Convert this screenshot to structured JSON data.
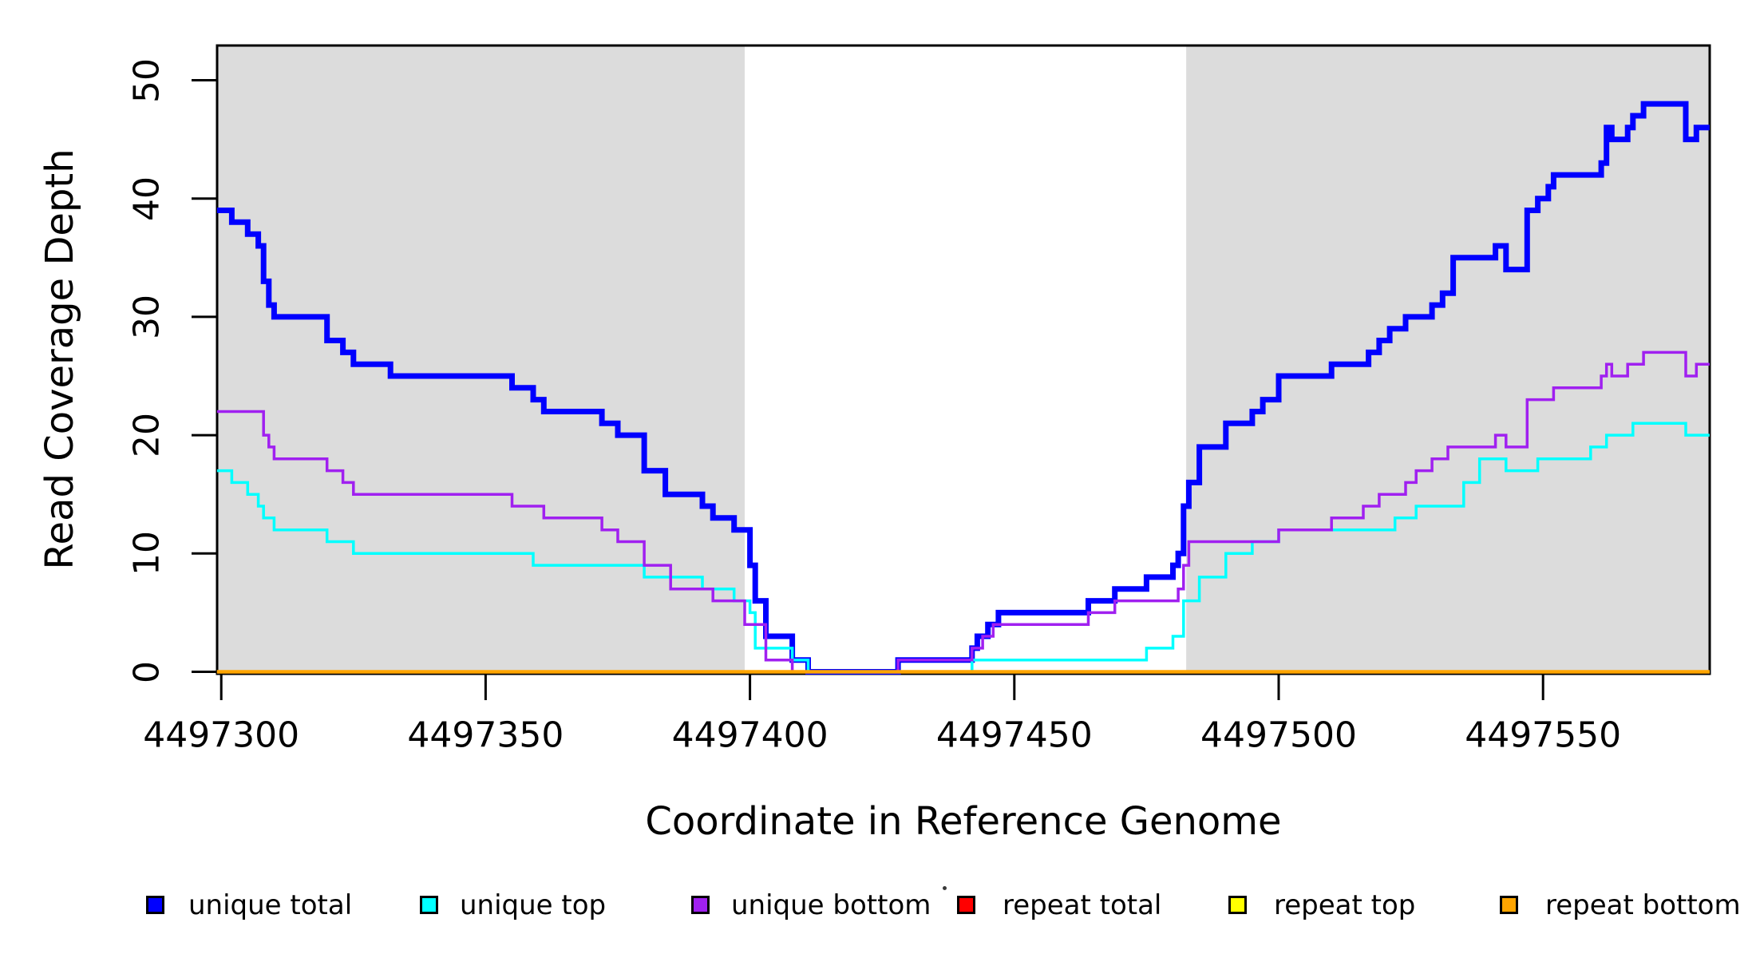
{
  "chart_data": {
    "type": "line",
    "style": "step",
    "title": "",
    "xlabel": "Coordinate in Reference Genome",
    "ylabel": "Read Coverage Depth",
    "xlim": [
      4497299.2,
      4497581.5
    ],
    "ylim": [
      0,
      53
    ],
    "x_ticks": [
      4497300,
      4497350,
      4497400,
      4497450,
      4497500,
      4497550
    ],
    "y_ticks": [
      0,
      10,
      20,
      30,
      40,
      50
    ],
    "grid": false,
    "legend_position": "bottom",
    "plot_background": "#ffffff",
    "shaded_regions": [
      {
        "from": 4497299.2,
        "to": 4497399,
        "color": "#dcdcdc"
      },
      {
        "from": 4497482.5,
        "to": 4497581.5,
        "color": "#dcdcdc"
      }
    ],
    "series": [
      {
        "name": "unique total",
        "color": "#0000ff",
        "line_width": 7,
        "points": [
          [
            4497299.2,
            39
          ],
          [
            4497302,
            38
          ],
          [
            4497305,
            37
          ],
          [
            4497307,
            36
          ],
          [
            4497308,
            33
          ],
          [
            4497309,
            31
          ],
          [
            4497310,
            30
          ],
          [
            4497320,
            28
          ],
          [
            4497323,
            27
          ],
          [
            4497325,
            26
          ],
          [
            4497332,
            25
          ],
          [
            4497355,
            24
          ],
          [
            4497359,
            23
          ],
          [
            4497361,
            22
          ],
          [
            4497372,
            21
          ],
          [
            4497375,
            20
          ],
          [
            4497380,
            17
          ],
          [
            4497384,
            15
          ],
          [
            4497391,
            14
          ],
          [
            4497393,
            13
          ],
          [
            4497397,
            12
          ],
          [
            4497400,
            9
          ],
          [
            4497401,
            6
          ],
          [
            4497403,
            3
          ],
          [
            4497408,
            1
          ],
          [
            4497411,
            0
          ],
          [
            4497428,
            1
          ],
          [
            4497442,
            2
          ],
          [
            4497443,
            3
          ],
          [
            4497445,
            4
          ],
          [
            4497447,
            5
          ],
          [
            4497464,
            6
          ],
          [
            4497469,
            7
          ],
          [
            4497475,
            8
          ],
          [
            4497480,
            9
          ],
          [
            4497481,
            10
          ],
          [
            4497482,
            14
          ],
          [
            4497483,
            16
          ],
          [
            4497485,
            19
          ],
          [
            4497490,
            21
          ],
          [
            4497495,
            22
          ],
          [
            4497497,
            23
          ],
          [
            4497500,
            25
          ],
          [
            4497510,
            26
          ],
          [
            4497517,
            27
          ],
          [
            4497519,
            28
          ],
          [
            4497521,
            29
          ],
          [
            4497524,
            30
          ],
          [
            4497529,
            31
          ],
          [
            4497531,
            32
          ],
          [
            4497533,
            35
          ],
          [
            4497541,
            36
          ],
          [
            4497543,
            34
          ],
          [
            4497547,
            39
          ],
          [
            4497549,
            40
          ],
          [
            4497551,
            41
          ],
          [
            4497552,
            42
          ],
          [
            4497561,
            43
          ],
          [
            4497562,
            46
          ],
          [
            4497563,
            45
          ],
          [
            4497566,
            46
          ],
          [
            4497567,
            47
          ],
          [
            4497569,
            48
          ],
          [
            4497577,
            45
          ],
          [
            4497579,
            46
          ],
          [
            4497581.5,
            46
          ]
        ]
      },
      {
        "name": "unique top",
        "color": "#00ffff",
        "line_width": 3.5,
        "points": [
          [
            4497299.2,
            17
          ],
          [
            4497302,
            16
          ],
          [
            4497305,
            15
          ],
          [
            4497307,
            14
          ],
          [
            4497308,
            13
          ],
          [
            4497310,
            12
          ],
          [
            4497320,
            11
          ],
          [
            4497325,
            10
          ],
          [
            4497359,
            9
          ],
          [
            4497380,
            8
          ],
          [
            4497391,
            7
          ],
          [
            4497397,
            6
          ],
          [
            4497400,
            5
          ],
          [
            4497401,
            2
          ],
          [
            4497408,
            1
          ],
          [
            4497411,
            0
          ],
          [
            4497442,
            1
          ],
          [
            4497475,
            2
          ],
          [
            4497480,
            3
          ],
          [
            4497482,
            6
          ],
          [
            4497485,
            8
          ],
          [
            4497490,
            10
          ],
          [
            4497495,
            11
          ],
          [
            4497500,
            12
          ],
          [
            4497522,
            13
          ],
          [
            4497526,
            14
          ],
          [
            4497535,
            16
          ],
          [
            4497538,
            18
          ],
          [
            4497543,
            17
          ],
          [
            4497549,
            18
          ],
          [
            4497559,
            19
          ],
          [
            4497562,
            20
          ],
          [
            4497567,
            21
          ],
          [
            4497577,
            20
          ],
          [
            4497581.5,
            20
          ]
        ]
      },
      {
        "name": "unique bottom",
        "color": "#a020f0",
        "line_width": 3.5,
        "points": [
          [
            4497299.2,
            22
          ],
          [
            4497308,
            20
          ],
          [
            4497309,
            19
          ],
          [
            4497310,
            18
          ],
          [
            4497320,
            17
          ],
          [
            4497323,
            16
          ],
          [
            4497325,
            15
          ],
          [
            4497355,
            14
          ],
          [
            4497361,
            13
          ],
          [
            4497372,
            12
          ],
          [
            4497375,
            11
          ],
          [
            4497380,
            9
          ],
          [
            4497385,
            7
          ],
          [
            4497393,
            6
          ],
          [
            4497399,
            4
          ],
          [
            4497403,
            1
          ],
          [
            4497408,
            0
          ],
          [
            4497428,
            1
          ],
          [
            4497442,
            2
          ],
          [
            4497444,
            3
          ],
          [
            4497446,
            4
          ],
          [
            4497464,
            5
          ],
          [
            4497469,
            6
          ],
          [
            4497481,
            7
          ],
          [
            4497482,
            9
          ],
          [
            4497483,
            11
          ],
          [
            4497500,
            12
          ],
          [
            4497510,
            13
          ],
          [
            4497516,
            14
          ],
          [
            4497519,
            15
          ],
          [
            4497524,
            16
          ],
          [
            4497526,
            17
          ],
          [
            4497529,
            18
          ],
          [
            4497532,
            19
          ],
          [
            4497541,
            20
          ],
          [
            4497543,
            19
          ],
          [
            4497547,
            23
          ],
          [
            4497552,
            24
          ],
          [
            4497561,
            25
          ],
          [
            4497562,
            26
          ],
          [
            4497563,
            25
          ],
          [
            4497566,
            26
          ],
          [
            4497569,
            27
          ],
          [
            4497577,
            25
          ],
          [
            4497579,
            26
          ],
          [
            4497581.5,
            26
          ]
        ]
      },
      {
        "name": "repeat total",
        "color": "#ff0000",
        "line_width": 3.5,
        "points": [
          [
            4497299.2,
            0
          ],
          [
            4497581.5,
            0
          ]
        ]
      },
      {
        "name": "repeat top",
        "color": "#ffff00",
        "line_width": 3.5,
        "points": [
          [
            4497299.2,
            0
          ],
          [
            4497581.5,
            0
          ]
        ]
      },
      {
        "name": "repeat bottom",
        "color": "#ffa500",
        "line_width": 4.5,
        "points": [
          [
            4497299.2,
            0
          ],
          [
            4497581.5,
            0
          ]
        ]
      }
    ]
  },
  "legend": {
    "items": [
      {
        "label": "unique total",
        "color": "#0000ff"
      },
      {
        "label": "unique top",
        "color": "#00ffff"
      },
      {
        "label": "unique bottom",
        "color": "#a020f0"
      },
      {
        "label": "repeat total",
        "color": "#ff0000"
      },
      {
        "label": "repeat top",
        "color": "#ffff00"
      },
      {
        "label": "repeat bottom",
        "color": "#ffa500"
      }
    ]
  }
}
